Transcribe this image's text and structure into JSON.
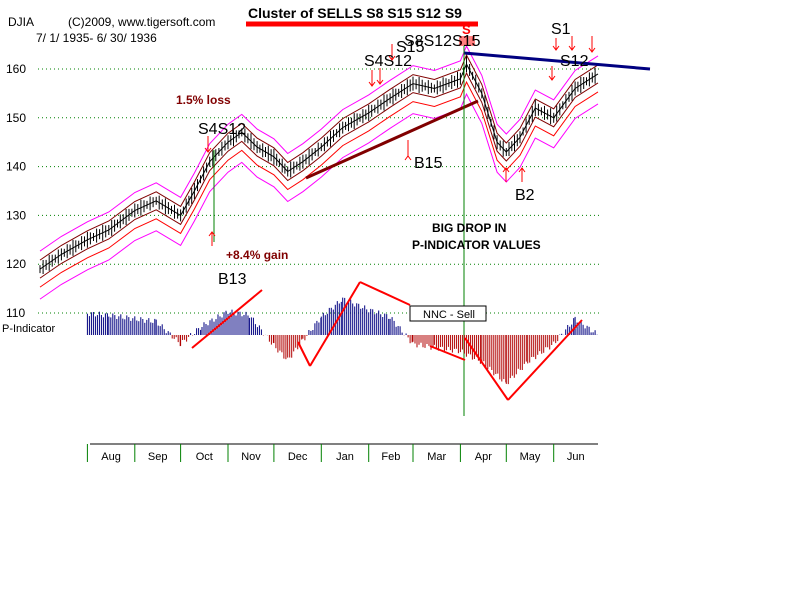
{
  "header": {
    "symbol": "DJIA",
    "copyright": "(C)2009, www.tigersoft.com",
    "date_range": "7/ 1/ 1935- 6/ 30/ 1936",
    "cluster_title": "Cluster of SELLS  S8 S15 S12 S9"
  },
  "colors": {
    "price": "#000000",
    "band_inner": "#800000",
    "band_mid": "#ff0000",
    "band_outer": "#ff00ff",
    "grid": "#008000",
    "pi_positive": "#000080",
    "pi_negative": "#b00000",
    "trendline_up": "#800000",
    "trendline_resist": "#000080",
    "signal": "#ff0000",
    "text_dark": "#000000",
    "text_maroon": "#800000"
  },
  "annotations": {
    "loss_label": "1.5% loss",
    "gain_label": "+8.4% gain",
    "big_drop_line1": "BIG DROP IN",
    "big_drop_line2": "P-INDICATOR VALUES",
    "nnc_sell": "NNC - Sell",
    "pi_label": "P-Indicator",
    "cluster_marker": "S"
  },
  "signals": [
    {
      "id": "b13",
      "label": "B13"
    },
    {
      "id": "s4s12-oct",
      "label": "S4S12"
    },
    {
      "id": "s4s12-feb",
      "label": "S4S12"
    },
    {
      "id": "s15",
      "label": "S15"
    },
    {
      "id": "s8s12s15",
      "label": "S8S12S15"
    },
    {
      "id": "b15",
      "label": "B15"
    },
    {
      "id": "b2",
      "label": "B2"
    },
    {
      "id": "s1",
      "label": "S1"
    },
    {
      "id": "s12-jun",
      "label": "S12"
    }
  ],
  "chart_data": {
    "type": "line",
    "series": [
      {
        "name": "DJIA",
        "x": [
          "1935-07-01",
          "1935-07-15",
          "1935-08-01",
          "1935-08-15",
          "1935-09-01",
          "1935-09-15",
          "1935-10-01",
          "1935-10-10",
          "1935-10-20",
          "1935-11-01",
          "1935-11-10",
          "1935-11-20",
          "1935-12-01",
          "1935-12-10",
          "1935-12-20",
          "1936-01-01",
          "1936-01-15",
          "1936-02-01",
          "1936-02-15",
          "1936-03-01",
          "1936-03-15",
          "1936-04-01",
          "1936-04-05",
          "1936-04-15",
          "1936-04-25",
          "1936-05-01",
          "1936-05-10",
          "1936-05-20",
          "1936-06-01",
          "1936-06-15",
          "1936-06-30"
        ],
        "values": [
          119,
          122,
          125,
          127,
          131,
          133,
          130,
          135,
          141,
          145,
          147,
          144,
          142,
          139,
          141,
          144,
          148,
          151,
          154,
          157,
          156,
          158,
          161,
          155,
          145,
          143,
          146,
          152,
          150,
          156,
          159
        ]
      }
    ],
    "p_indicator": {
      "name": "P-Indicator",
      "x": [
        "1935-08-01",
        "1935-08-15",
        "1935-09-01",
        "1935-09-15",
        "1935-10-01",
        "1935-10-15",
        "1935-11-01",
        "1935-11-15",
        "1935-12-01",
        "1935-12-10",
        "1935-12-20",
        "1936-01-01",
        "1936-01-15",
        "1936-02-01",
        "1936-02-15",
        "1936-03-01",
        "1936-03-15",
        "1936-04-01",
        "1936-04-15",
        "1936-05-01",
        "1936-05-15",
        "1936-06-01",
        "1936-06-15",
        "1936-06-30"
      ],
      "values": [
        24,
        22,
        18,
        15,
        -10,
        10,
        26,
        22,
        -12,
        -28,
        -6,
        20,
        40,
        28,
        20,
        -10,
        -14,
        -18,
        -30,
        -54,
        -30,
        -10,
        18,
        0
      ]
    },
    "xlabel": "",
    "ylabel": "",
    "ylim": [
      115,
      165
    ],
    "yticks": [
      110,
      120,
      130,
      140,
      150,
      160
    ],
    "xticks": [
      "Aug",
      "Sep",
      "Oct",
      "Nov",
      "Dec",
      "Jan",
      "Feb",
      "Mar",
      "Apr",
      "May",
      "Jun"
    ],
    "grid": true
  }
}
